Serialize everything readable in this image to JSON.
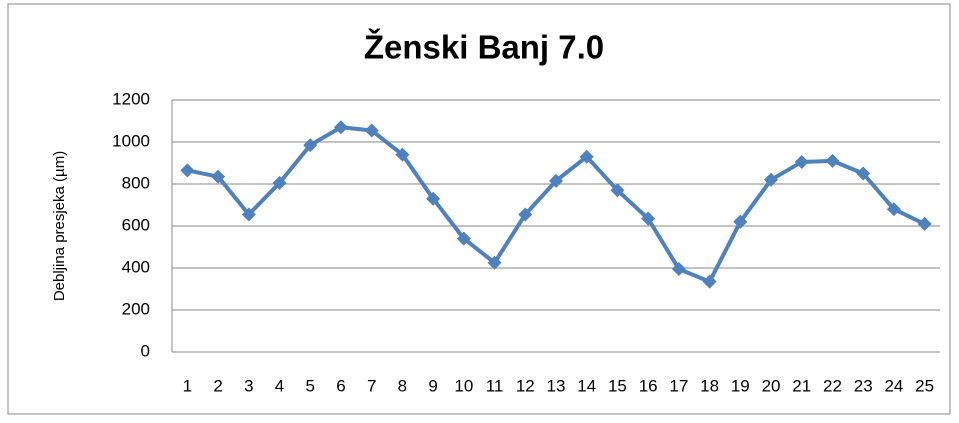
{
  "chart_data": {
    "type": "line",
    "title": "Ženski Banj 7.0",
    "y_label": "Debljina presjeka (µm)",
    "categories": [
      "1",
      "2",
      "3",
      "4",
      "5",
      "6",
      "7",
      "8",
      "9",
      "10",
      "11",
      "12",
      "13",
      "14",
      "15",
      "16",
      "17",
      "18",
      "19",
      "20",
      "21",
      "22",
      "23",
      "24",
      "25"
    ],
    "series": [
      {
        "name": "Ženski Banj 7.0",
        "color": "#4f81bd",
        "values": [
          865,
          835,
          655,
          805,
          985,
          1070,
          1055,
          940,
          730,
          540,
          425,
          655,
          815,
          930,
          770,
          635,
          395,
          335,
          620,
          820,
          905,
          910,
          850,
          680,
          610
        ]
      }
    ],
    "ylim": [
      0,
      1200
    ],
    "yticks": [
      0,
      200,
      400,
      600,
      800,
      1000,
      1200
    ],
    "grid": true
  }
}
